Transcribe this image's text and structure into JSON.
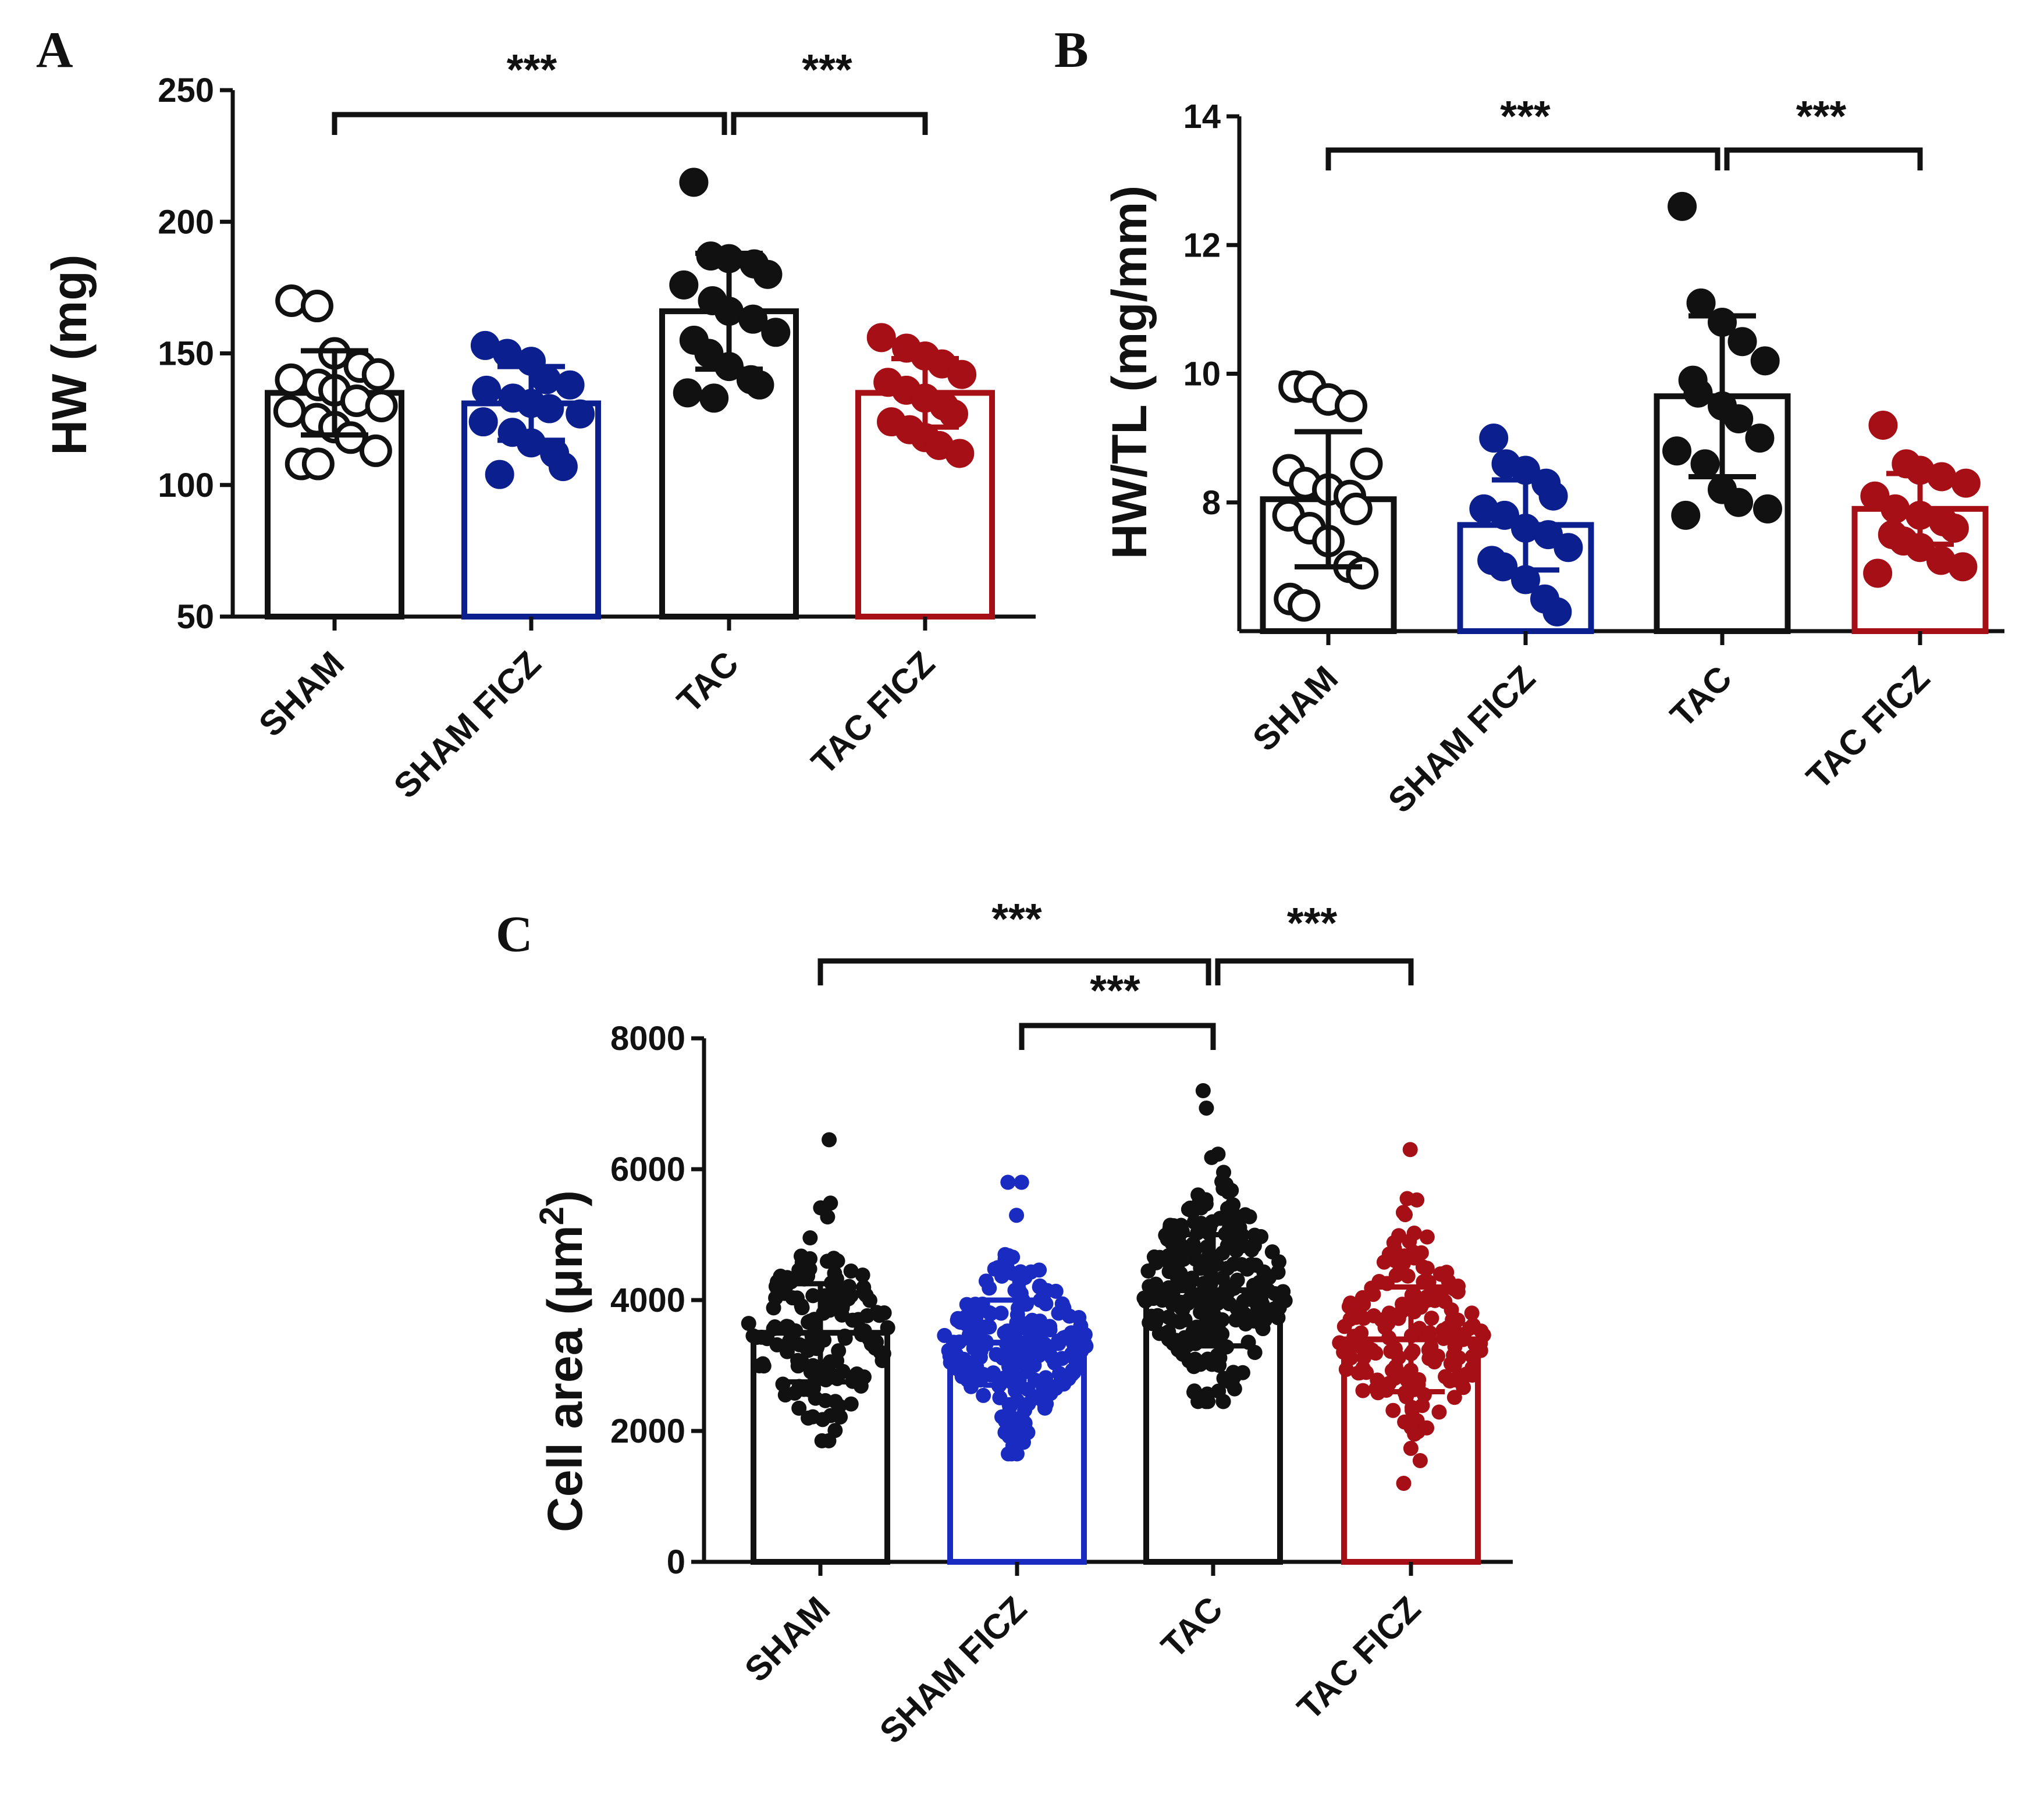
{
  "chart_data": [
    {
      "panel": "A",
      "type": "bar",
      "ylabel": "HW (mg)",
      "categories": [
        "SHAM",
        "SHAM FICZ",
        "TAC",
        "TAC FICZ"
      ],
      "colors": [
        "#111111",
        "#0c1f8e",
        "#111111",
        "#a50f15"
      ],
      "marker_style": [
        "open",
        "filled",
        "filled",
        "filled"
      ],
      "ylim": [
        50,
        250
      ],
      "yticks": [
        50,
        100,
        150,
        200,
        250
      ],
      "means": [
        135,
        131,
        166,
        135
      ],
      "sd": [
        16,
        14,
        22,
        13
      ],
      "points": [
        [
          170,
          168,
          150,
          145,
          142,
          140,
          138,
          136,
          132,
          130,
          128,
          125,
          122,
          118,
          113,
          108,
          108
        ],
        [
          153,
          150,
          147,
          140,
          138,
          136,
          133,
          131,
          129,
          127,
          124,
          120,
          116,
          112,
          107,
          104
        ],
        [
          215,
          187,
          186,
          184,
          180,
          176,
          170,
          166,
          163,
          158,
          155,
          150,
          145,
          140,
          138,
          135,
          133
        ],
        [
          156,
          152,
          149,
          146,
          142,
          139,
          136,
          133,
          130,
          127,
          124,
          121,
          118,
          115,
          112
        ]
      ],
      "significance": [
        {
          "from": "SHAM",
          "to": "TAC",
          "label": "***"
        },
        {
          "from": "TAC",
          "to": "TAC FICZ",
          "label": "***"
        }
      ]
    },
    {
      "panel": "B",
      "type": "bar",
      "ylabel": "HW/TL (mg/mm)",
      "categories": [
        "SHAM",
        "SHAM FICZ",
        "TAC",
        "TAC FICZ"
      ],
      "colors": [
        "#111111",
        "#0c1f8e",
        "#111111",
        "#a50f15"
      ],
      "marker_style": [
        "open",
        "filled",
        "filled",
        "filled"
      ],
      "ylim": [
        6,
        14
      ],
      "yticks": [
        8,
        10,
        12,
        14
      ],
      "means": [
        8.05,
        7.65,
        9.65,
        7.9
      ],
      "sd": [
        1.05,
        0.7,
        1.25,
        0.55
      ],
      "points": [
        [
          9.8,
          9.8,
          9.6,
          9.5,
          8.6,
          8.5,
          8.3,
          8.2,
          8.1,
          7.9,
          7.8,
          7.6,
          7.4,
          7.0,
          6.9,
          6.5,
          6.4
        ],
        [
          9.0,
          8.6,
          8.5,
          8.3,
          8.1,
          7.9,
          7.8,
          7.6,
          7.5,
          7.3,
          7.1,
          7.0,
          6.8,
          6.5,
          6.3
        ],
        [
          12.6,
          11.1,
          10.8,
          10.5,
          10.2,
          9.9,
          9.7,
          9.5,
          9.3,
          9.0,
          8.8,
          8.6,
          8.2,
          8.0,
          7.9,
          7.8
        ],
        [
          9.2,
          8.6,
          8.5,
          8.4,
          8.3,
          8.1,
          7.9,
          7.8,
          7.7,
          7.6,
          7.5,
          7.4,
          7.3,
          7.1,
          7.0,
          6.9
        ]
      ],
      "significance": [
        {
          "from": "SHAM",
          "to": "TAC",
          "label": "***"
        },
        {
          "from": "TAC",
          "to": "TAC FICZ",
          "label": "***"
        }
      ]
    },
    {
      "panel": "C",
      "type": "bar",
      "ylabel": "Cell  area (μm²)",
      "ylabel_main": "Cell  area (μm",
      "ylabel_sup": "2",
      "ylabel_close": ")",
      "categories": [
        "SHAM",
        "SHAM FICZ",
        "TAC",
        "TAC FICZ"
      ],
      "colors": [
        "#111111",
        "#1a2bc2",
        "#111111",
        "#a50f15"
      ],
      "marker_style": [
        "filled",
        "filled",
        "filled",
        "filled"
      ],
      "ylim": [
        0,
        8000
      ],
      "yticks": [
        0,
        2000,
        4000,
        6000,
        8000
      ],
      "means": [
        3500,
        3350,
        4150,
        3400
      ],
      "sd": [
        750,
        650,
        850,
        800
      ],
      "point_counts": [
        150,
        220,
        260,
        180
      ],
      "point_ranges": [
        [
          1850,
          6450
        ],
        [
          1650,
          5800
        ],
        [
          2450,
          7200
        ],
        [
          1200,
          6300
        ]
      ],
      "significance": [
        {
          "from": "SHAM",
          "to": "TAC",
          "label": "***"
        },
        {
          "from": "SHAM FICZ",
          "to": "TAC",
          "label": "***"
        },
        {
          "from": "TAC",
          "to": "TAC FICZ",
          "label": "***"
        }
      ]
    }
  ]
}
